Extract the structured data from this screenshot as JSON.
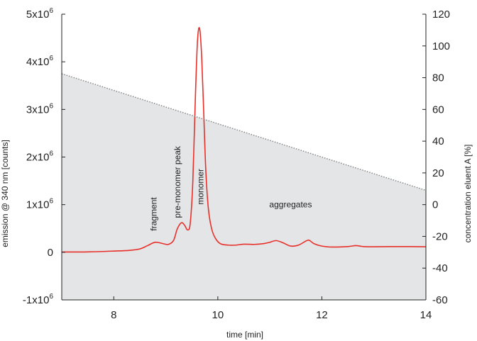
{
  "chart_data": {
    "type": "line",
    "title": "",
    "xlabel": "time [min]",
    "ylabel_left": "emission @ 340 nm [counts]",
    "ylabel_right": "concentration eluent A [%]",
    "xlim": [
      7,
      14
    ],
    "ylim_left": [
      -1000000,
      5000000
    ],
    "ylim_right": [
      -60,
      120
    ],
    "x_ticks": [
      8,
      10,
      12,
      14
    ],
    "x_tick_labels": [
      "8",
      "10",
      "12",
      "14"
    ],
    "y_left_ticks": [
      -1000000,
      0,
      1000000,
      2000000,
      3000000,
      4000000,
      5000000
    ],
    "y_left_tick_labels": [
      {
        "base": "-1x10",
        "exp": "6"
      },
      {
        "base": "0",
        "exp": ""
      },
      {
        "base": "1x10",
        "exp": "6"
      },
      {
        "base": "2x10",
        "exp": "6"
      },
      {
        "base": "3x10",
        "exp": "6"
      },
      {
        "base": "4x10",
        "exp": "6"
      },
      {
        "base": "5x10",
        "exp": "6"
      }
    ],
    "y_right_ticks": [
      -60,
      -40,
      -20,
      0,
      20,
      40,
      60,
      80,
      100,
      120
    ],
    "y_right_tick_labels": [
      "-60",
      "-40",
      "-20",
      "0",
      "20",
      "40",
      "60",
      "80",
      "100",
      "120"
    ],
    "grid": false,
    "series": [
      {
        "color": "#e8302a",
        "axis": "left",
        "style": "solid",
        "x": [
          7.0,
          7.5,
          8.0,
          8.3,
          8.5,
          8.65,
          8.8,
          8.95,
          9.05,
          9.15,
          9.22,
          9.3,
          9.36,
          9.42,
          9.47,
          9.52,
          9.57,
          9.61,
          9.65,
          9.69,
          9.73,
          9.77,
          9.82,
          9.88,
          9.95,
          10.05,
          10.2,
          10.35,
          10.5,
          10.7,
          10.9,
          11.0,
          11.12,
          11.25,
          11.4,
          11.55,
          11.7,
          11.76,
          11.85,
          12.0,
          12.2,
          12.5,
          12.65,
          12.8,
          13.0,
          13.5,
          14.0
        ],
        "y": [
          5000,
          8000,
          25000,
          40000,
          70000,
          140000,
          210000,
          180000,
          165000,
          250000,
          490000,
          620000,
          570000,
          470000,
          610000,
          1500000,
          3300000,
          4450000,
          4700000,
          4100000,
          2900000,
          1700000,
          900000,
          500000,
          300000,
          180000,
          150000,
          150000,
          170000,
          165000,
          185000,
          210000,
          245000,
          200000,
          130000,
          150000,
          240000,
          250000,
          180000,
          130000,
          110000,
          120000,
          140000,
          120000,
          115000,
          120000,
          115000
        ]
      },
      {
        "color": "#888888",
        "axis": "right",
        "style": "dotted",
        "fill": "#e4e5e7",
        "x": [
          7.0,
          14.0
        ],
        "y": [
          82.5,
          9.0
        ]
      }
    ],
    "annotations": [
      {
        "text": "fragment",
        "x": 8.82,
        "y": 450000,
        "rotation": 90
      },
      {
        "text": "pre-monomer peak",
        "x": 9.28,
        "y": 720000,
        "rotation": 90
      },
      {
        "text": "monomer",
        "x": 9.72,
        "y": 1000000,
        "rotation": 90
      },
      {
        "text": "aggregates",
        "x": 11.4,
        "y": 1000000,
        "rotation": 0
      }
    ]
  }
}
